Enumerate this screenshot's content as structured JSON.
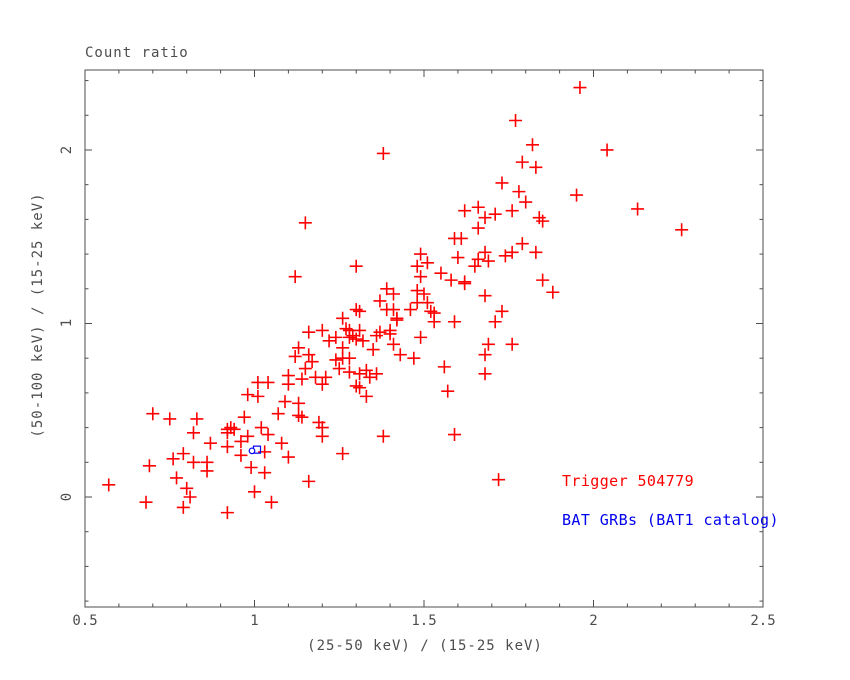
{
  "chart_data": {
    "type": "scatter",
    "title": "Count ratio",
    "xlabel": "(25-50 keV) / (15-25 keV)",
    "ylabel": "(50-100 keV) / (15-25 keV)",
    "xlim": [
      0.5,
      2.5
    ],
    "ylim": [
      -0.634,
      2.461
    ],
    "grid": false,
    "x_major_ticks": {
      "values": [
        0.5,
        1,
        1.5,
        2,
        2.5
      ],
      "labels": [
        "0.5",
        "1",
        "1.5",
        "2",
        "2.5"
      ]
    },
    "x_minor_step": 0.1,
    "y_major_ticks": {
      "values": [
        0,
        1,
        2
      ],
      "labels": [
        "0",
        "1",
        "2"
      ]
    },
    "y_minor_step": 0.2,
    "colors": {
      "axis": "#4d4d4d",
      "red": "#ff0000",
      "blue": "#0000ee",
      "background": "#ffffff"
    },
    "legend": [
      {
        "text": "Trigger 504779",
        "color": "#ff0000"
      },
      {
        "text": "BAT GRBs (BAT1 catalog)",
        "color": "#0000ee"
      }
    ],
    "series": [
      {
        "name": "red-plus-markers",
        "marker": "plus",
        "color": "#ff0000",
        "points": [
          [
            1.38,
            1.98
          ],
          [
            1.15,
            1.58
          ],
          [
            1.12,
            1.27
          ],
          [
            1.3,
            1.33
          ],
          [
            1.49,
            1.4
          ],
          [
            1.48,
            1.33
          ],
          [
            1.49,
            1.27
          ],
          [
            1.39,
            1.2
          ],
          [
            1.41,
            1.17
          ],
          [
            1.48,
            1.19
          ],
          [
            1.5,
            1.17
          ],
          [
            1.37,
            1.13
          ],
          [
            1.39,
            1.08
          ],
          [
            1.41,
            1.08
          ],
          [
            1.42,
            1.03
          ],
          [
            1.42,
            1.02
          ],
          [
            1.3,
            1.08
          ],
          [
            1.31,
            1.07
          ],
          [
            1.46,
            1.08
          ],
          [
            1.48,
            1.12
          ],
          [
            1.26,
            1.03
          ],
          [
            1.27,
            0.97
          ],
          [
            1.28,
            0.96
          ],
          [
            1.31,
            0.96
          ],
          [
            1.16,
            0.95
          ],
          [
            1.2,
            0.96
          ],
          [
            1.37,
            0.95
          ],
          [
            1.4,
            0.96
          ],
          [
            1.4,
            0.94
          ],
          [
            1.96,
            2.36
          ],
          [
            1.77,
            2.17
          ],
          [
            1.82,
            2.03
          ],
          [
            2.04,
            2.0
          ],
          [
            1.79,
            1.93
          ],
          [
            1.83,
            1.9
          ],
          [
            1.73,
            1.81
          ],
          [
            1.78,
            1.76
          ],
          [
            1.95,
            1.74
          ],
          [
            1.8,
            1.7
          ],
          [
            2.13,
            1.66
          ],
          [
            1.62,
            1.65
          ],
          [
            1.66,
            1.67
          ],
          [
            1.68,
            1.61
          ],
          [
            1.71,
            1.63
          ],
          [
            1.76,
            1.65
          ],
          [
            1.84,
            1.61
          ],
          [
            1.85,
            1.59
          ],
          [
            1.66,
            1.55
          ],
          [
            2.26,
            1.54
          ],
          [
            1.59,
            1.49
          ],
          [
            1.61,
            1.49
          ],
          [
            1.6,
            1.38
          ],
          [
            1.68,
            1.41
          ],
          [
            1.66,
            1.37
          ],
          [
            1.69,
            1.36
          ],
          [
            1.74,
            1.39
          ],
          [
            1.76,
            1.41
          ],
          [
            1.65,
            1.33
          ],
          [
            1.79,
            1.46
          ],
          [
            1.83,
            1.41
          ],
          [
            1.51,
            1.35
          ],
          [
            1.55,
            1.29
          ],
          [
            1.58,
            1.25
          ],
          [
            1.62,
            1.24
          ],
          [
            1.62,
            1.23
          ],
          [
            1.68,
            1.16
          ],
          [
            1.85,
            1.25
          ],
          [
            1.88,
            1.18
          ],
          [
            1.51,
            1.12
          ],
          [
            1.52,
            1.07
          ],
          [
            1.53,
            1.06
          ],
          [
            1.53,
            1.01
          ],
          [
            1.59,
            1.01
          ],
          [
            1.73,
            1.07
          ],
          [
            1.71,
            1.01
          ],
          [
            1.13,
            0.86
          ],
          [
            1.12,
            0.81
          ],
          [
            1.16,
            0.82
          ],
          [
            1.17,
            0.78
          ],
          [
            1.22,
            0.9
          ],
          [
            1.24,
            0.92
          ],
          [
            1.26,
            0.86
          ],
          [
            1.28,
            0.92
          ],
          [
            1.29,
            0.93
          ],
          [
            1.3,
            0.91
          ],
          [
            1.32,
            0.9
          ],
          [
            1.35,
            0.85
          ],
          [
            1.36,
            0.93
          ],
          [
            1.41,
            0.88
          ],
          [
            1.43,
            0.82
          ],
          [
            1.47,
            0.8
          ],
          [
            1.49,
            0.92
          ],
          [
            1.24,
            0.79
          ],
          [
            1.26,
            0.8
          ],
          [
            1.28,
            0.8
          ],
          [
            1.15,
            0.74
          ],
          [
            1.1,
            0.7
          ],
          [
            1.1,
            0.65
          ],
          [
            1.14,
            0.68
          ],
          [
            1.18,
            0.69
          ],
          [
            1.21,
            0.69
          ],
          [
            1.2,
            0.65
          ],
          [
            1.25,
            0.74
          ],
          [
            1.28,
            0.72
          ],
          [
            1.31,
            0.71
          ],
          [
            1.33,
            0.73
          ],
          [
            1.34,
            0.69
          ],
          [
            1.36,
            0.71
          ],
          [
            1.3,
            0.64
          ],
          [
            1.31,
            0.63
          ],
          [
            1.33,
            0.58
          ],
          [
            1.04,
            0.66
          ],
          [
            1.01,
            0.66
          ],
          [
            0.98,
            0.59
          ],
          [
            1.01,
            0.58
          ],
          [
            1.09,
            0.55
          ],
          [
            1.13,
            0.54
          ],
          [
            1.13,
            0.47
          ],
          [
            1.07,
            0.48
          ],
          [
            1.14,
            0.46
          ],
          [
            1.19,
            0.43
          ],
          [
            1.2,
            0.4
          ],
          [
            1.2,
            0.35
          ],
          [
            0.97,
            0.46
          ],
          [
            0.94,
            0.39
          ],
          [
            0.7,
            0.48
          ],
          [
            0.75,
            0.45
          ],
          [
            0.83,
            0.45
          ],
          [
            0.82,
            0.37
          ],
          [
            0.92,
            0.39
          ],
          [
            0.92,
            0.37
          ],
          [
            0.93,
            0.4
          ],
          [
            0.96,
            0.32
          ],
          [
            0.98,
            0.35
          ],
          [
            1.02,
            0.4
          ],
          [
            1.04,
            0.36
          ],
          [
            0.87,
            0.31
          ],
          [
            0.92,
            0.29
          ],
          [
            0.96,
            0.24
          ],
          [
            1.08,
            0.31
          ],
          [
            1.03,
            0.26
          ],
          [
            0.99,
            0.17
          ],
          [
            1.03,
            0.14
          ],
          [
            0.79,
            0.25
          ],
          [
            0.76,
            0.22
          ],
          [
            0.82,
            0.2
          ],
          [
            0.86,
            0.2
          ],
          [
            0.86,
            0.15
          ],
          [
            0.69,
            0.18
          ],
          [
            0.77,
            0.11
          ],
          [
            0.8,
            0.05
          ],
          [
            0.81,
            0.0
          ],
          [
            0.57,
            0.07
          ],
          [
            0.68,
            -0.03
          ],
          [
            0.79,
            -0.06
          ],
          [
            0.92,
            -0.09
          ],
          [
            1.0,
            0.03
          ],
          [
            1.05,
            -0.03
          ],
          [
            1.16,
            0.09
          ],
          [
            1.1,
            0.23
          ],
          [
            1.38,
            0.35
          ],
          [
            1.26,
            0.25
          ],
          [
            1.69,
            0.88
          ],
          [
            1.76,
            0.88
          ],
          [
            1.68,
            0.82
          ],
          [
            1.56,
            0.75
          ],
          [
            1.68,
            0.71
          ],
          [
            1.57,
            0.61
          ],
          [
            1.59,
            0.36
          ],
          [
            1.72,
            0.1
          ]
        ]
      },
      {
        "name": "blue-trigger-marker",
        "marker": "open-square-circle",
        "color": "#0000ee",
        "points": [
          [
            1.0,
            0.27
          ]
        ]
      }
    ]
  }
}
